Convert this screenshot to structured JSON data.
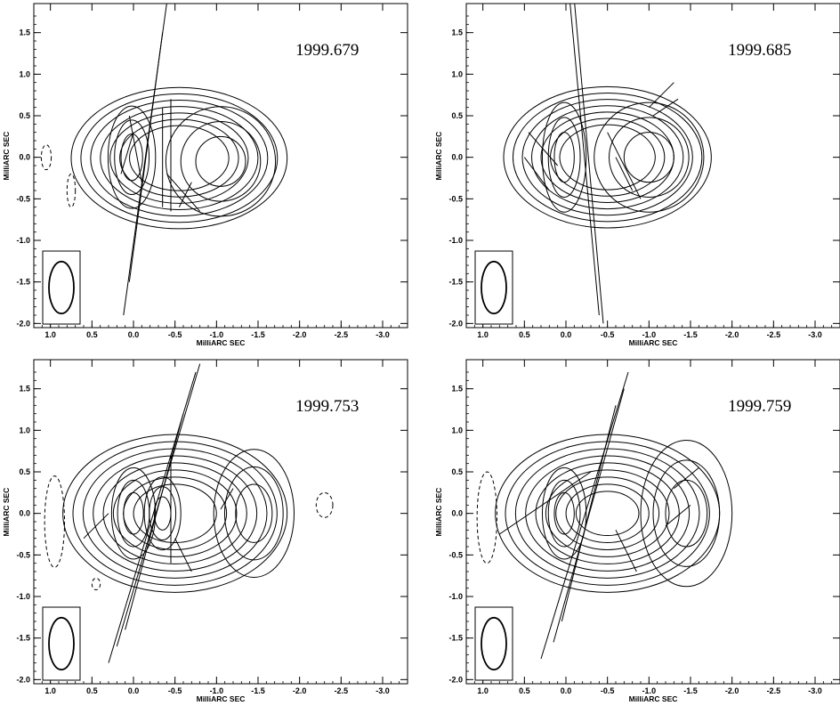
{
  "chart_data": [
    {
      "type": "contour",
      "title": "1999.679",
      "xlabel": "MilliARC SEC",
      "ylabel": "MilliARC SEC",
      "xlim": [
        1.2,
        -3.3
      ],
      "ylim": [
        -2.05,
        1.85
      ],
      "x_ticks": [
        "1.0",
        "0.5",
        "0.0",
        "-0.5",
        "-1.0",
        "-1.5",
        "-2.0",
        "-2.5",
        "-3.0"
      ],
      "y_ticks": [
        "1.5",
        "1.0",
        "0.5",
        "0.0",
        "-0.5",
        "-1.0",
        "-1.5",
        "-2.0"
      ],
      "components": [
        {
          "x": 0.0,
          "y": 0.0
        },
        {
          "x": -1.05,
          "y": -0.05
        }
      ],
      "beam": {
        "major": 0.5,
        "minor": 0.2,
        "pa": 0
      }
    },
    {
      "type": "contour",
      "title": "1999.685",
      "xlabel": "MilliARC SEC",
      "ylabel": "MilliARC SEC",
      "xlim": [
        1.2,
        -3.3
      ],
      "ylim": [
        -2.05,
        1.85
      ],
      "x_ticks": [
        "1.0",
        "0.5",
        "0.0",
        "-0.5",
        "-1.0",
        "-1.5",
        "-2.0",
        "-2.5",
        "-3.0"
      ],
      "y_ticks": [
        "1.5",
        "1.0",
        "0.5",
        "0.0",
        "-0.5",
        "-1.0",
        "-1.5",
        "-2.0"
      ],
      "components": [
        {
          "x": 0.0,
          "y": 0.0
        },
        {
          "x": -1.0,
          "y": 0.0
        }
      ],
      "beam": {
        "major": 0.5,
        "minor": 0.2,
        "pa": 0
      }
    },
    {
      "type": "contour",
      "title": "1999.753",
      "xlabel": "MilliARC SEC",
      "ylabel": "MilliARC SEC",
      "xlim": [
        1.2,
        -3.3
      ],
      "ylim": [
        -2.05,
        1.85
      ],
      "x_ticks": [
        "1.0",
        "0.5",
        "0.0",
        "-0.5",
        "-1.0",
        "-1.5",
        "-2.0",
        "-2.5",
        "-3.0"
      ],
      "y_ticks": [
        "1.5",
        "1.0",
        "0.5",
        "0.0",
        "-0.5",
        "-1.0",
        "-1.5",
        "-2.0"
      ],
      "components": [
        {
          "x": 0.0,
          "y": 0.0
        },
        {
          "x": -0.35,
          "y": 0.0
        },
        {
          "x": -1.45,
          "y": 0.0
        }
      ],
      "beam": {
        "major": 0.5,
        "minor": 0.2,
        "pa": 0
      }
    },
    {
      "type": "contour",
      "title": "1999.759",
      "xlabel": "MilliARC SEC",
      "ylabel": "MilliARC SEC",
      "xlim": [
        1.2,
        -3.3
      ],
      "ylim": [
        -2.05,
        1.85
      ],
      "x_ticks": [
        "1.0",
        "0.5",
        "0.0",
        "-0.5",
        "-1.0",
        "-1.5",
        "-2.0",
        "-2.5",
        "-3.0"
      ],
      "y_ticks": [
        "1.5",
        "1.0",
        "0.5",
        "0.0",
        "-0.5",
        "-1.0",
        "-1.5",
        "-2.0"
      ],
      "components": [
        {
          "x": 0.0,
          "y": 0.0
        },
        {
          "x": -1.45,
          "y": 0.0
        }
      ],
      "beam": {
        "major": 0.5,
        "minor": 0.2,
        "pa": 0
      }
    }
  ]
}
